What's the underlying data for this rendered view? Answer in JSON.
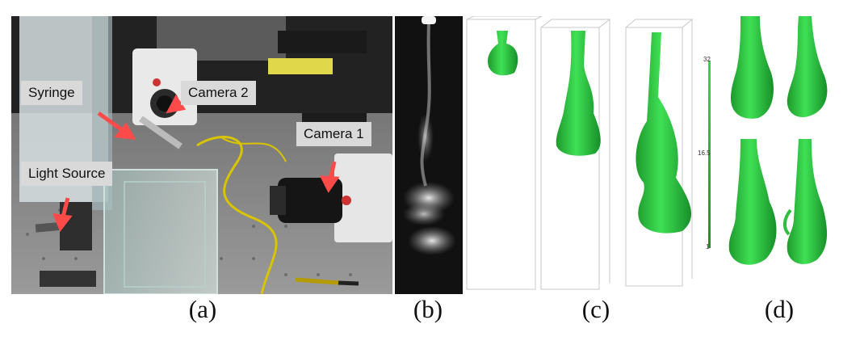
{
  "panels": {
    "photo": {
      "labels": {
        "syringe": "Syringe",
        "camera2": "Camera 2",
        "camera1": "Camera 1",
        "light_source": "Light Source"
      }
    },
    "reconstruction": {
      "colorbar": {
        "max": "32",
        "mid": "16.5",
        "min": "1"
      }
    }
  },
  "captions": [
    "(a)",
    "(b)",
    "(c)",
    "(d)"
  ],
  "colors": {
    "arrow": "#ff4a4a",
    "label_bg": "#d9d9d9",
    "plume_green": "#22c23a",
    "background_dark": "#111111"
  }
}
